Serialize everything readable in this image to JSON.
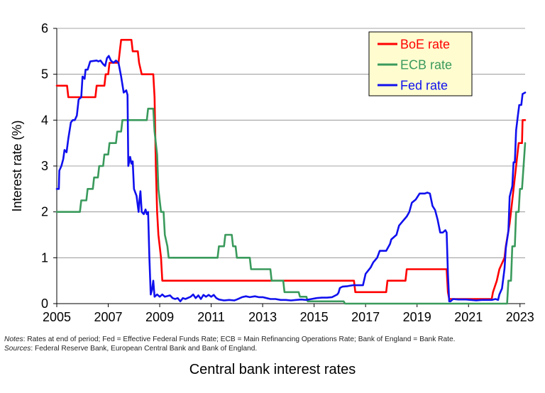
{
  "chart_data": {
    "type": "line",
    "title": "Central bank interest rates",
    "xlabel": "",
    "ylabel": "Interest rate (%)",
    "xlim": [
      2005,
      2023.2
    ],
    "ylim": [
      0,
      6
    ],
    "x_ticks": [
      2005,
      2007,
      2009,
      2011,
      2013,
      2015,
      2017,
      2019,
      2021,
      2023
    ],
    "y_ticks": [
      0,
      1,
      2,
      3,
      4,
      5,
      6
    ],
    "grid": "horizontal",
    "legend_position": "top-right",
    "series": [
      {
        "name": "BoE rate",
        "color": "#ff0000",
        "points": [
          [
            2005.0,
            4.75
          ],
          [
            2005.4,
            4.75
          ],
          [
            2005.45,
            4.5
          ],
          [
            2006.5,
            4.5
          ],
          [
            2006.55,
            4.75
          ],
          [
            2006.85,
            4.75
          ],
          [
            2006.9,
            5.0
          ],
          [
            2007.0,
            5.0
          ],
          [
            2007.05,
            5.25
          ],
          [
            2007.4,
            5.25
          ],
          [
            2007.45,
            5.5
          ],
          [
            2007.5,
            5.75
          ],
          [
            2007.9,
            5.75
          ],
          [
            2007.95,
            5.5
          ],
          [
            2008.15,
            5.5
          ],
          [
            2008.2,
            5.25
          ],
          [
            2008.3,
            5.0
          ],
          [
            2008.75,
            5.0
          ],
          [
            2008.8,
            4.5
          ],
          [
            2008.85,
            3.0
          ],
          [
            2008.9,
            2.0
          ],
          [
            2008.95,
            1.5
          ],
          [
            2009.05,
            1.0
          ],
          [
            2009.1,
            0.5
          ],
          [
            2016.55,
            0.5
          ],
          [
            2016.6,
            0.25
          ],
          [
            2017.8,
            0.25
          ],
          [
            2017.85,
            0.5
          ],
          [
            2018.55,
            0.5
          ],
          [
            2018.6,
            0.75
          ],
          [
            2020.15,
            0.75
          ],
          [
            2020.2,
            0.25
          ],
          [
            2020.25,
            0.1
          ],
          [
            2021.9,
            0.1
          ],
          [
            2021.95,
            0.25
          ],
          [
            2022.1,
            0.5
          ],
          [
            2022.2,
            0.75
          ],
          [
            2022.4,
            1.0
          ],
          [
            2022.45,
            1.25
          ],
          [
            2022.6,
            1.75
          ],
          [
            2022.7,
            2.25
          ],
          [
            2022.85,
            3.0
          ],
          [
            2022.95,
            3.5
          ],
          [
            2023.08,
            3.5
          ],
          [
            2023.1,
            4.0
          ],
          [
            2023.2,
            4.0
          ]
        ]
      },
      {
        "name": "ECB rate",
        "color": "#3a9a5c",
        "points": [
          [
            2005.0,
            2.0
          ],
          [
            2005.9,
            2.0
          ],
          [
            2005.95,
            2.25
          ],
          [
            2006.15,
            2.25
          ],
          [
            2006.2,
            2.5
          ],
          [
            2006.4,
            2.5
          ],
          [
            2006.45,
            2.75
          ],
          [
            2006.6,
            2.75
          ],
          [
            2006.65,
            3.0
          ],
          [
            2006.8,
            3.0
          ],
          [
            2006.85,
            3.25
          ],
          [
            2007.0,
            3.25
          ],
          [
            2007.05,
            3.5
          ],
          [
            2007.3,
            3.5
          ],
          [
            2007.35,
            3.75
          ],
          [
            2007.5,
            3.75
          ],
          [
            2007.55,
            4.0
          ],
          [
            2008.5,
            4.0
          ],
          [
            2008.55,
            4.25
          ],
          [
            2008.75,
            4.25
          ],
          [
            2008.8,
            3.75
          ],
          [
            2008.9,
            3.25
          ],
          [
            2008.95,
            2.5
          ],
          [
            2009.05,
            2.0
          ],
          [
            2009.15,
            2.0
          ],
          [
            2009.2,
            1.5
          ],
          [
            2009.3,
            1.25
          ],
          [
            2009.35,
            1.0
          ],
          [
            2011.25,
            1.0
          ],
          [
            2011.3,
            1.25
          ],
          [
            2011.5,
            1.25
          ],
          [
            2011.55,
            1.5
          ],
          [
            2011.8,
            1.5
          ],
          [
            2011.85,
            1.25
          ],
          [
            2011.95,
            1.25
          ],
          [
            2012.0,
            1.0
          ],
          [
            2012.5,
            1.0
          ],
          [
            2012.55,
            0.75
          ],
          [
            2013.3,
            0.75
          ],
          [
            2013.35,
            0.5
          ],
          [
            2013.8,
            0.5
          ],
          [
            2013.85,
            0.25
          ],
          [
            2014.4,
            0.25
          ],
          [
            2014.45,
            0.15
          ],
          [
            2014.7,
            0.15
          ],
          [
            2014.75,
            0.05
          ],
          [
            2016.15,
            0.05
          ],
          [
            2016.2,
            0.0
          ],
          [
            2022.5,
            0.0
          ],
          [
            2022.55,
            0.5
          ],
          [
            2022.65,
            0.5
          ],
          [
            2022.7,
            1.25
          ],
          [
            2022.8,
            1.25
          ],
          [
            2022.85,
            2.0
          ],
          [
            2022.95,
            2.0
          ],
          [
            2023.0,
            2.5
          ],
          [
            2023.08,
            2.5
          ],
          [
            2023.2,
            3.5
          ]
        ]
      },
      {
        "name": "Fed rate",
        "color": "#1010ee",
        "points": [
          [
            2005.0,
            2.5
          ],
          [
            2005.08,
            2.5
          ],
          [
            2005.1,
            2.9
          ],
          [
            2005.18,
            3.0
          ],
          [
            2005.25,
            3.15
          ],
          [
            2005.3,
            3.35
          ],
          [
            2005.38,
            3.3
          ],
          [
            2005.45,
            3.6
          ],
          [
            2005.55,
            3.95
          ],
          [
            2005.62,
            4.0
          ],
          [
            2005.7,
            4.0
          ],
          [
            2005.78,
            4.1
          ],
          [
            2005.85,
            4.45
          ],
          [
            2005.95,
            4.5
          ],
          [
            2006.0,
            4.95
          ],
          [
            2006.08,
            4.9
          ],
          [
            2006.12,
            5.1
          ],
          [
            2006.2,
            5.1
          ],
          [
            2006.3,
            5.28
          ],
          [
            2006.55,
            5.3
          ],
          [
            2006.62,
            5.28
          ],
          [
            2006.7,
            5.3
          ],
          [
            2006.8,
            5.22
          ],
          [
            2006.88,
            5.18
          ],
          [
            2006.95,
            5.35
          ],
          [
            2007.02,
            5.4
          ],
          [
            2007.1,
            5.3
          ],
          [
            2007.2,
            5.25
          ],
          [
            2007.3,
            5.3
          ],
          [
            2007.4,
            5.25
          ],
          [
            2007.5,
            4.95
          ],
          [
            2007.6,
            4.6
          ],
          [
            2007.7,
            4.65
          ],
          [
            2007.75,
            4.55
          ],
          [
            2007.78,
            3.0
          ],
          [
            2007.85,
            3.2
          ],
          [
            2007.9,
            3.05
          ],
          [
            2007.95,
            3.1
          ],
          [
            2008.0,
            2.5
          ],
          [
            2008.1,
            2.35
          ],
          [
            2008.18,
            2.0
          ],
          [
            2008.22,
            2.3
          ],
          [
            2008.25,
            2.45
          ],
          [
            2008.3,
            2.0
          ],
          [
            2008.38,
            1.95
          ],
          [
            2008.45,
            2.05
          ],
          [
            2008.5,
            1.95
          ],
          [
            2008.55,
            2.0
          ],
          [
            2008.6,
            1.0
          ],
          [
            2008.65,
            0.2
          ],
          [
            2008.7,
            0.3
          ],
          [
            2008.75,
            0.5
          ],
          [
            2008.8,
            0.15
          ],
          [
            2008.9,
            0.2
          ],
          [
            2009.0,
            0.15
          ],
          [
            2009.1,
            0.2
          ],
          [
            2009.2,
            0.15
          ],
          [
            2009.4,
            0.18
          ],
          [
            2009.5,
            0.12
          ],
          [
            2009.6,
            0.1
          ],
          [
            2009.7,
            0.12
          ],
          [
            2009.8,
            0.05
          ],
          [
            2009.9,
            0.12
          ],
          [
            2010.0,
            0.1
          ],
          [
            2010.2,
            0.15
          ],
          [
            2010.3,
            0.2
          ],
          [
            2010.4,
            0.12
          ],
          [
            2010.5,
            0.18
          ],
          [
            2010.6,
            0.1
          ],
          [
            2010.7,
            0.19
          ],
          [
            2010.8,
            0.15
          ],
          [
            2010.9,
            0.19
          ],
          [
            2011.0,
            0.15
          ],
          [
            2011.1,
            0.19
          ],
          [
            2011.2,
            0.12
          ],
          [
            2011.3,
            0.09
          ],
          [
            2011.5,
            0.07
          ],
          [
            2011.7,
            0.08
          ],
          [
            2011.9,
            0.07
          ],
          [
            2012.0,
            0.09
          ],
          [
            2012.2,
            0.14
          ],
          [
            2012.35,
            0.16
          ],
          [
            2012.5,
            0.14
          ],
          [
            2012.7,
            0.16
          ],
          [
            2012.85,
            0.14
          ],
          [
            2013.0,
            0.14
          ],
          [
            2013.15,
            0.12
          ],
          [
            2013.3,
            0.1
          ],
          [
            2013.5,
            0.1
          ],
          [
            2013.7,
            0.08
          ],
          [
            2013.9,
            0.08
          ],
          [
            2014.1,
            0.07
          ],
          [
            2014.3,
            0.08
          ],
          [
            2014.5,
            0.09
          ],
          [
            2014.7,
            0.08
          ],
          [
            2014.9,
            0.1
          ],
          [
            2015.1,
            0.12
          ],
          [
            2015.3,
            0.13
          ],
          [
            2015.5,
            0.13
          ],
          [
            2015.7,
            0.14
          ],
          [
            2015.9,
            0.2
          ],
          [
            2015.95,
            0.24
          ],
          [
            2016.0,
            0.34
          ],
          [
            2016.1,
            0.37
          ],
          [
            2016.3,
            0.38
          ],
          [
            2016.5,
            0.4
          ],
          [
            2016.7,
            0.4
          ],
          [
            2016.9,
            0.4
          ],
          [
            2017.0,
            0.65
          ],
          [
            2017.2,
            0.79
          ],
          [
            2017.3,
            0.9
          ],
          [
            2017.45,
            1.0
          ],
          [
            2017.55,
            1.15
          ],
          [
            2017.8,
            1.15
          ],
          [
            2017.95,
            1.3
          ],
          [
            2018.0,
            1.4
          ],
          [
            2018.2,
            1.5
          ],
          [
            2018.3,
            1.7
          ],
          [
            2018.45,
            1.8
          ],
          [
            2018.6,
            1.9
          ],
          [
            2018.7,
            2.0
          ],
          [
            2018.8,
            2.2
          ],
          [
            2018.95,
            2.27
          ],
          [
            2019.1,
            2.4
          ],
          [
            2019.3,
            2.4
          ],
          [
            2019.4,
            2.42
          ],
          [
            2019.5,
            2.4
          ],
          [
            2019.6,
            2.13
          ],
          [
            2019.7,
            2.04
          ],
          [
            2019.8,
            1.83
          ],
          [
            2019.9,
            1.55
          ],
          [
            2020.0,
            1.55
          ],
          [
            2020.1,
            1.6
          ],
          [
            2020.15,
            1.55
          ],
          [
            2020.2,
            0.65
          ],
          [
            2020.25,
            0.05
          ],
          [
            2020.3,
            0.05
          ],
          [
            2020.4,
            0.1
          ],
          [
            2020.6,
            0.09
          ],
          [
            2020.9,
            0.09
          ],
          [
            2021.1,
            0.08
          ],
          [
            2021.3,
            0.07
          ],
          [
            2021.5,
            0.08
          ],
          [
            2021.7,
            0.08
          ],
          [
            2021.9,
            0.08
          ],
          [
            2022.05,
            0.1
          ],
          [
            2022.15,
            0.08
          ],
          [
            2022.2,
            0.2
          ],
          [
            2022.3,
            0.33
          ],
          [
            2022.4,
            0.77
          ],
          [
            2022.45,
            1.21
          ],
          [
            2022.55,
            1.58
          ],
          [
            2022.6,
            2.33
          ],
          [
            2022.7,
            2.56
          ],
          [
            2022.75,
            3.08
          ],
          [
            2022.8,
            3.08
          ],
          [
            2022.85,
            3.78
          ],
          [
            2022.92,
            4.1
          ],
          [
            2022.97,
            4.33
          ],
          [
            2023.05,
            4.33
          ],
          [
            2023.1,
            4.57
          ],
          [
            2023.2,
            4.6
          ]
        ]
      }
    ]
  },
  "notes": {
    "notes_label": "Notes",
    "notes_text": ": Rates at end of period; Fed = Effective Federal Funds Rate; ECB = Main Refinancing Operations Rate; Bank of England = Bank Rate.",
    "sources_label": "Sources",
    "sources_text": ": Federal Reserve Bank, European Central Bank and Bank of England."
  }
}
